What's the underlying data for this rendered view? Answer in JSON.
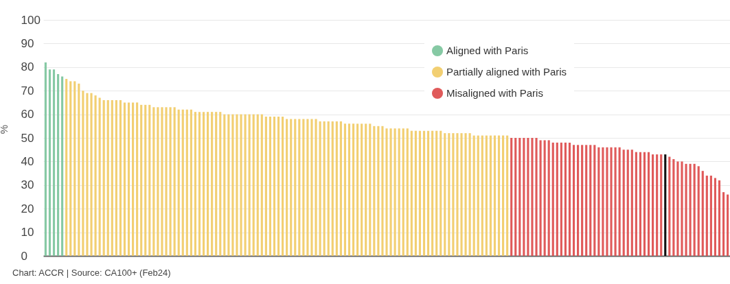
{
  "chart_data": {
    "type": "bar",
    "ylabel": "%",
    "ylim": [
      0,
      100
    ],
    "yticks": [
      0,
      10,
      20,
      30,
      40,
      50,
      60,
      70,
      80,
      90,
      100
    ],
    "grid": "y",
    "legend": "top right",
    "categories": [
      null,
      null,
      null,
      null,
      null,
      null,
      null,
      null,
      null,
      null,
      null,
      null,
      null,
      null,
      null,
      null,
      null,
      null,
      null,
      null,
      null,
      null,
      null,
      null,
      null,
      null,
      null,
      null,
      null,
      null,
      null,
      null,
      null,
      null,
      null,
      null,
      null,
      null,
      null,
      null,
      null,
      null,
      null,
      null,
      null,
      null,
      null,
      null,
      null,
      null,
      null,
      null,
      null,
      null,
      null,
      null,
      null,
      null,
      null,
      null,
      null,
      null,
      null,
      null,
      null,
      null,
      null,
      null,
      null,
      null,
      null,
      null,
      null,
      null,
      null,
      null,
      null,
      null,
      null,
      null,
      null,
      null,
      null,
      null,
      null,
      null,
      null,
      null,
      null,
      null,
      null,
      null,
      null,
      null,
      null,
      null,
      null,
      null,
      null,
      null,
      null,
      null,
      null,
      null,
      null,
      null,
      null,
      null,
      null,
      null,
      null,
      null,
      null,
      null,
      null,
      null,
      null,
      null,
      null,
      null,
      null,
      null,
      null,
      null,
      null,
      null,
      null,
      null,
      null,
      null,
      null,
      null,
      null,
      null,
      null,
      null,
      null,
      null,
      null,
      null,
      null,
      null,
      null,
      null,
      null,
      null,
      null,
      null,
      null,
      null,
      null,
      null,
      null,
      null,
      null,
      null,
      null,
      null,
      null,
      null,
      null,
      null,
      null,
      null,
      null
    ],
    "series": [
      {
        "name": "Aligned with Paris",
        "color": "#86c9a4",
        "values": [
          82,
          79,
          79,
          77,
          76,
          null,
          null,
          null,
          null,
          null,
          null,
          null,
          null,
          null,
          null,
          null,
          null,
          null,
          null,
          null,
          null,
          null,
          null,
          null,
          null,
          null,
          null,
          null,
          null,
          null,
          null,
          null,
          null,
          null,
          null,
          null,
          null,
          null,
          null,
          null,
          null,
          null,
          null,
          null,
          null,
          null,
          null,
          null,
          null,
          null,
          null,
          null,
          null,
          null,
          null,
          null,
          null,
          null,
          null,
          null,
          null,
          null,
          null,
          null,
          null,
          null,
          null,
          null,
          null,
          null,
          null,
          null,
          null,
          null,
          null,
          null,
          null,
          null,
          null,
          null,
          null,
          null,
          null,
          null,
          null,
          null,
          null,
          null,
          null,
          null,
          null,
          null,
          null,
          null,
          null,
          null,
          null,
          null,
          null,
          null,
          null,
          null,
          null,
          null,
          null,
          null,
          null,
          null,
          null,
          null,
          null,
          null,
          null,
          null,
          null,
          null,
          null,
          null,
          null,
          null,
          null,
          null,
          null,
          null,
          null,
          null,
          null,
          null,
          null,
          null,
          null,
          null,
          null,
          null,
          null,
          null,
          null,
          null,
          null,
          null,
          null,
          null,
          null,
          null,
          null,
          null,
          null,
          null,
          null,
          null,
          null,
          null,
          null,
          null,
          null,
          null,
          null,
          null,
          null,
          null,
          null,
          null,
          null,
          null,
          null
        ]
      },
      {
        "name": "Partially aligned with Paris",
        "color": "#f2cf72",
        "values": [
          null,
          null,
          null,
          null,
          null,
          75,
          74,
          74,
          73,
          70,
          69,
          69,
          68,
          67,
          66,
          66,
          66,
          66,
          66,
          65,
          65,
          65,
          65,
          64,
          64,
          64,
          63,
          63,
          63,
          63,
          63,
          63,
          62,
          62,
          62,
          62,
          61,
          61,
          61,
          61,
          61,
          61,
          61,
          60,
          60,
          60,
          60,
          60,
          60,
          60,
          60,
          60,
          60,
          59,
          59,
          59,
          59,
          59,
          58,
          58,
          58,
          58,
          58,
          58,
          58,
          58,
          57,
          57,
          57,
          57,
          57,
          57,
          56,
          56,
          56,
          56,
          56,
          56,
          56,
          55,
          55,
          55,
          54,
          54,
          54,
          54,
          54,
          54,
          53,
          53,
          53,
          53,
          53,
          53,
          53,
          53,
          52,
          52,
          52,
          52,
          52,
          52,
          52,
          51,
          51,
          51,
          51,
          51,
          51,
          51,
          51,
          51,
          null,
          null,
          null,
          null,
          null,
          null,
          null,
          null,
          null,
          null,
          null,
          null,
          null,
          null,
          null,
          null,
          null,
          null,
          null,
          null,
          null,
          null,
          null,
          null,
          null,
          null,
          null,
          null,
          null,
          null,
          null,
          null,
          null,
          null,
          null,
          null,
          null,
          null,
          null,
          null,
          null,
          null,
          null,
          null,
          null,
          null,
          null,
          null,
          null,
          null,
          null,
          null,
          null
        ]
      },
      {
        "name": "Misaligned with Paris",
        "color": "#e05a5a",
        "values": [
          null,
          null,
          null,
          null,
          null,
          null,
          null,
          null,
          null,
          null,
          null,
          null,
          null,
          null,
          null,
          null,
          null,
          null,
          null,
          null,
          null,
          null,
          null,
          null,
          null,
          null,
          null,
          null,
          null,
          null,
          null,
          null,
          null,
          null,
          null,
          null,
          null,
          null,
          null,
          null,
          null,
          null,
          null,
          null,
          null,
          null,
          null,
          null,
          null,
          null,
          null,
          null,
          null,
          null,
          null,
          null,
          null,
          null,
          null,
          null,
          null,
          null,
          null,
          null,
          null,
          null,
          null,
          null,
          null,
          null,
          null,
          null,
          null,
          null,
          null,
          null,
          null,
          null,
          null,
          null,
          null,
          null,
          null,
          null,
          null,
          null,
          null,
          null,
          null,
          null,
          null,
          null,
          null,
          null,
          null,
          null,
          null,
          null,
          null,
          null,
          null,
          null,
          null,
          null,
          null,
          null,
          null,
          null,
          null,
          null,
          null,
          null,
          50,
          50,
          50,
          50,
          50,
          50,
          50,
          49,
          49,
          49,
          48,
          48,
          48,
          48,
          48,
          47,
          47,
          47,
          47,
          47,
          47,
          46,
          46,
          46,
          46,
          46,
          46,
          45,
          45,
          45,
          44,
          44,
          44,
          44,
          43,
          43,
          43,
          null,
          42,
          41,
          40,
          40,
          39,
          39,
          39,
          38,
          36,
          34,
          34,
          33,
          32,
          27,
          26
        ]
      },
      {
        "color": "#111111",
        "values": [
          null,
          null,
          null,
          null,
          null,
          null,
          null,
          null,
          null,
          null,
          null,
          null,
          null,
          null,
          null,
          null,
          null,
          null,
          null,
          null,
          null,
          null,
          null,
          null,
          null,
          null,
          null,
          null,
          null,
          null,
          null,
          null,
          null,
          null,
          null,
          null,
          null,
          null,
          null,
          null,
          null,
          null,
          null,
          null,
          null,
          null,
          null,
          null,
          null,
          null,
          null,
          null,
          null,
          null,
          null,
          null,
          null,
          null,
          null,
          null,
          null,
          null,
          null,
          null,
          null,
          null,
          null,
          null,
          null,
          null,
          null,
          null,
          null,
          null,
          null,
          null,
          null,
          null,
          null,
          null,
          null,
          null,
          null,
          null,
          null,
          null,
          null,
          null,
          null,
          null,
          null,
          null,
          null,
          null,
          null,
          null,
          null,
          null,
          null,
          null,
          null,
          null,
          null,
          null,
          null,
          null,
          null,
          null,
          null,
          null,
          null,
          null,
          null,
          null,
          null,
          null,
          null,
          null,
          null,
          null,
          null,
          null,
          null,
          null,
          null,
          null,
          null,
          null,
          null,
          null,
          null,
          null,
          null,
          null,
          null,
          null,
          null,
          null,
          null,
          null,
          null,
          null,
          null,
          null,
          null,
          null,
          null,
          null,
          null,
          43,
          null,
          null,
          null,
          null,
          null,
          null,
          null,
          null,
          null,
          null,
          null,
          null,
          null,
          null,
          null
        ]
      }
    ],
    "annotations": [
      "Chart: ACCR | Source: CA100+ (Feb24)"
    ]
  }
}
